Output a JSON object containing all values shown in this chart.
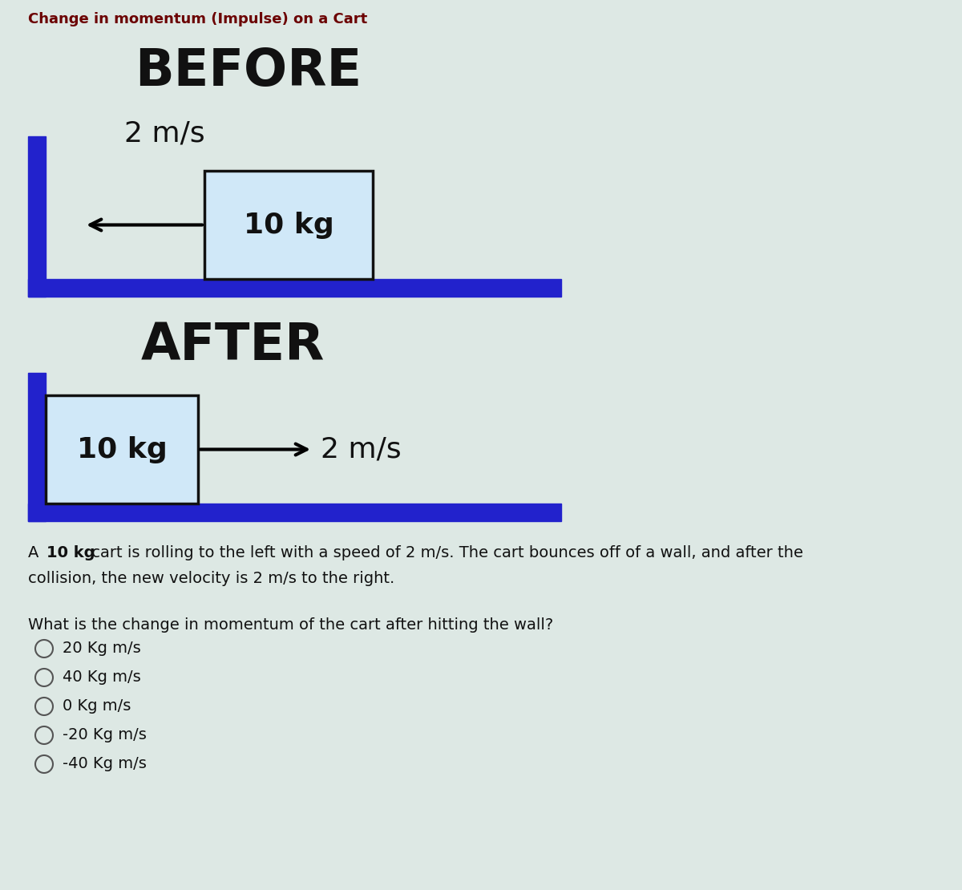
{
  "title": "Change in momentum (Impulse) on a Cart",
  "title_fontsize": 13,
  "title_color": "#6b0000",
  "bg_color": "#dde8e4",
  "before_label": "BEFORE",
  "after_label": "AFTER",
  "before_speed_label": "2 m/s",
  "after_speed_label": "2 m/s",
  "cart_label": "10 kg",
  "wall_color": "#2222cc",
  "cart_fill": "#d0e8f8",
  "cart_edge": "#111111",
  "description_part1": "A ",
  "description_bold": "10 kg",
  "description_part2": " cart is rolling to the left with a speed of 2 m/s. The cart bounces off of a wall, and after the",
  "description_line2": "collision, the new velocity is 2 m/s to the right.",
  "question": "What is the change in momentum of the cart after hitting the wall?",
  "choices": [
    "20 Kg m/s",
    "40 Kg m/s",
    "0 Kg m/s",
    "-20 Kg m/s",
    "-40 Kg m/s"
  ],
  "text_color": "#111111"
}
